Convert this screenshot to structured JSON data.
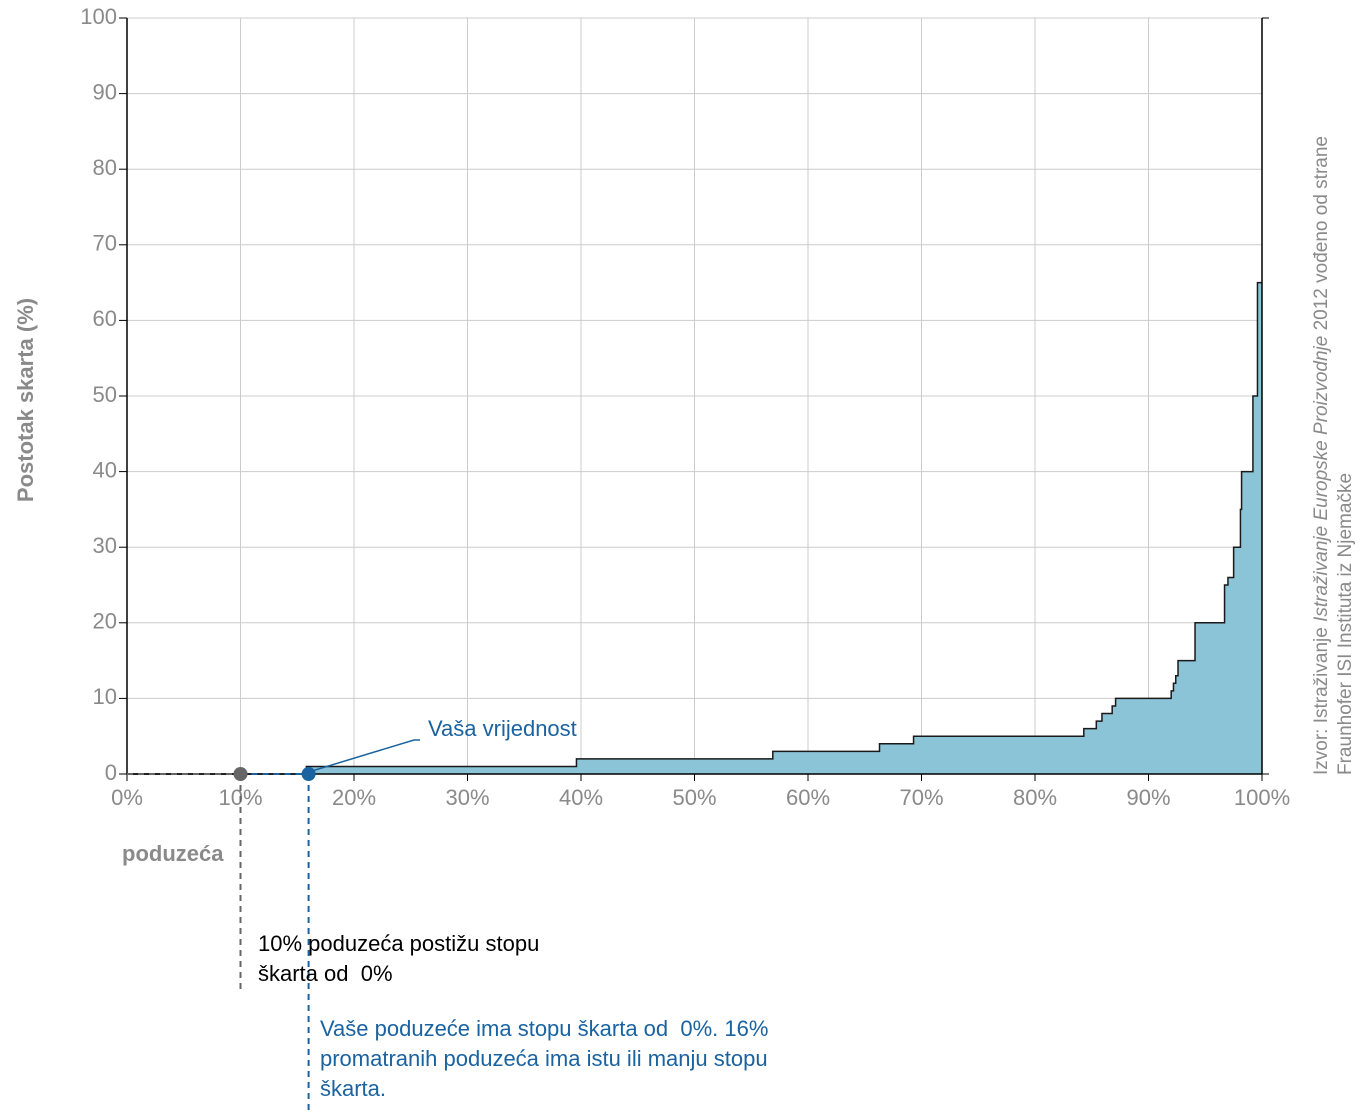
{
  "chart_data": {
    "type": "step-area",
    "ylabel": "Postotak skarta (%)",
    "xlabel": "poduzeća",
    "x": [
      0,
      15.8,
      39.6,
      56.9,
      66.3,
      69.3,
      84.3,
      85.4,
      85.9,
      86.8,
      87.1,
      92.0,
      92.2,
      92.4,
      92.6,
      94.1,
      96.7,
      97.0,
      97.5,
      98.1,
      98.2,
      99.2,
      99.6,
      100
    ],
    "values": [
      0,
      1,
      2,
      3,
      4,
      5,
      6,
      7,
      8,
      9,
      10,
      11,
      12,
      13,
      15,
      20,
      25,
      26,
      30,
      35,
      40,
      50,
      65,
      65
    ],
    "color": "#8bc3d7",
    "line_color": "#1a1a1a",
    "xlim": [
      0,
      100
    ],
    "ylim": [
      0,
      100
    ],
    "xticks": [
      {
        "value": 0,
        "label": "0%"
      },
      {
        "value": 10,
        "label": "10%"
      },
      {
        "value": 20,
        "label": "20%"
      },
      {
        "value": 30,
        "label": "30%"
      },
      {
        "value": 40,
        "label": "40%"
      },
      {
        "value": 50,
        "label": "50%"
      },
      {
        "value": 60,
        "label": "60%"
      },
      {
        "value": 70,
        "label": "70%"
      },
      {
        "value": 80,
        "label": "80%"
      },
      {
        "value": 90,
        "label": "90%"
      },
      {
        "value": 100,
        "label": "100%"
      }
    ],
    "yticks": [
      0,
      10,
      20,
      30,
      40,
      50,
      60,
      70,
      80,
      90,
      100
    ],
    "grid": true,
    "markers": [
      {
        "x": 10,
        "y": 0,
        "color": "#666666"
      },
      {
        "x": 16,
        "y": 0,
        "color": "#1a63a0"
      }
    ],
    "pointer_label": "Vaša vrijednost",
    "note_gray": [
      "10% poduzeća postižu stopu",
      "škarta od  0%"
    ],
    "note_blue": [
      "Vaše poduzeće ima stopu škarta od  0%. 16%",
      "promatranih poduzeća ima istu ili manju stopu",
      "škarta."
    ],
    "source": {
      "line1": [
        "Izvor: Istraživanje ",
        "Istraživanje Europske Proizvodnje",
        " 2012 vođeno od strane"
      ],
      "line2": "Fraunhofer ISI Instituta iz Njemačke"
    }
  }
}
